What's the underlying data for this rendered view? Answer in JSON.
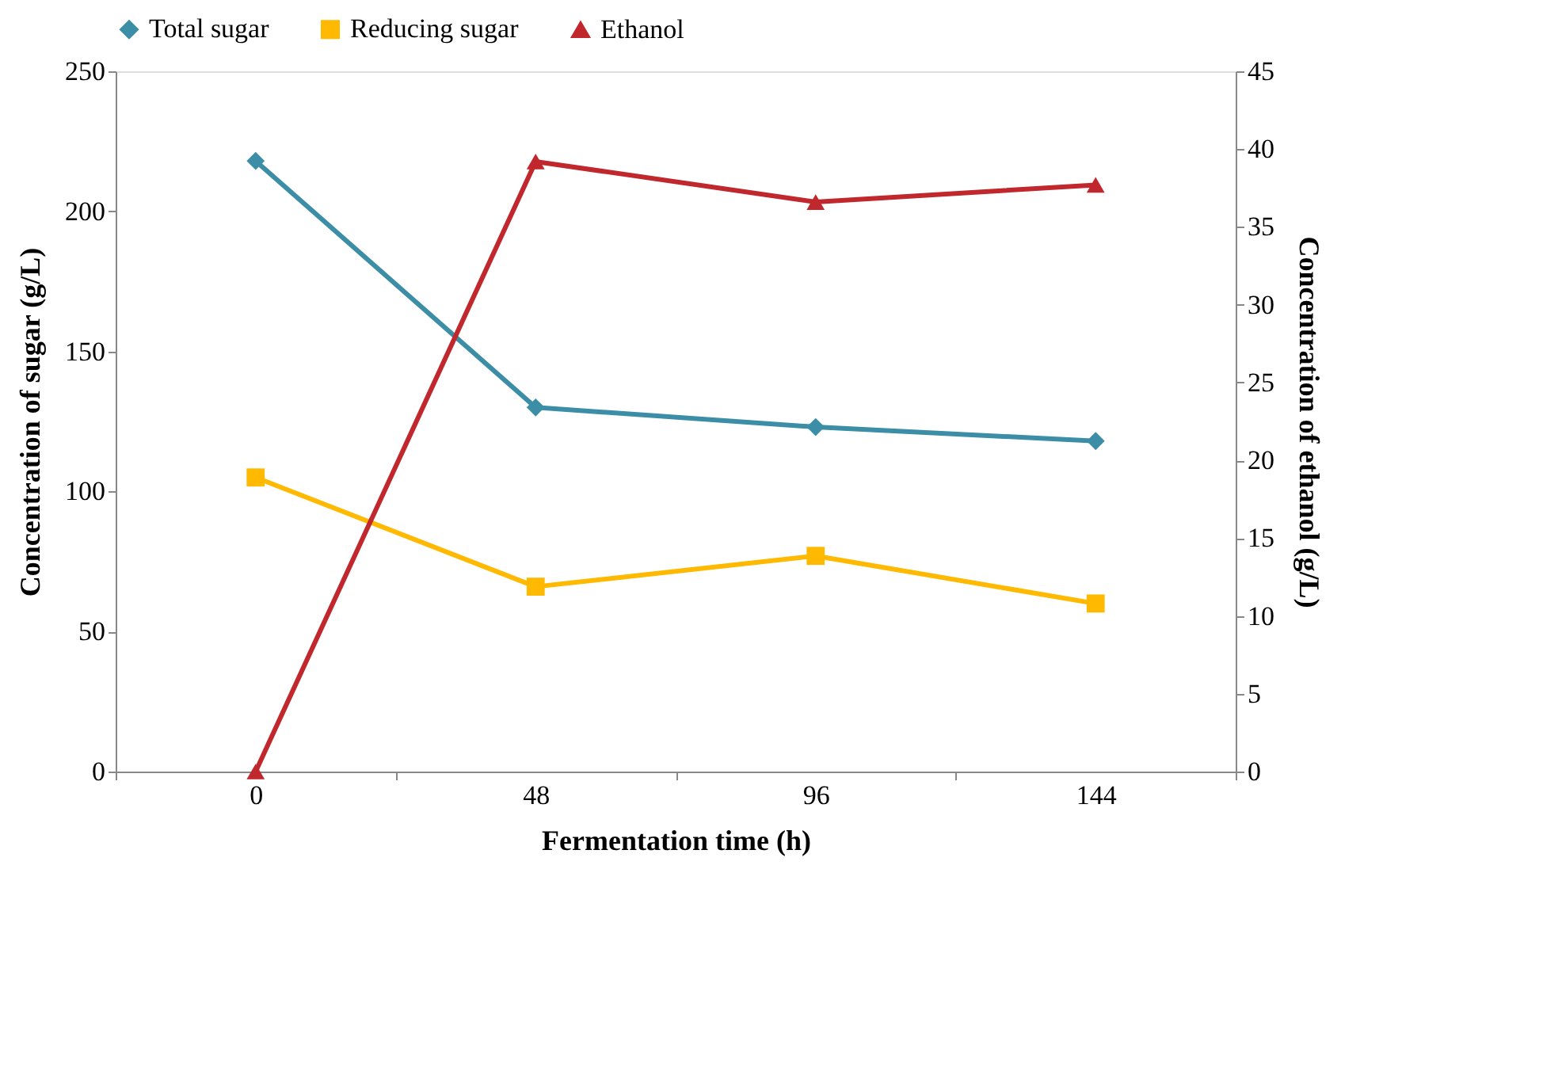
{
  "chart_data": {
    "type": "line",
    "xlabel": "Fermentation time (h)",
    "ylabel": "Concentration of sugar (g/L)",
    "y2label": "Concentration of ethanol (g/L)",
    "categories": [
      "0",
      "48",
      "96",
      "144"
    ],
    "series": [
      {
        "name": "Total sugar",
        "color": "#3b8ea5",
        "marker": "diamond",
        "values": [
          218,
          130,
          123,
          118
        ]
      },
      {
        "name": "Reducing sugar",
        "color": "#ffb900",
        "marker": "square",
        "values": [
          105,
          66,
          77,
          60
        ]
      },
      {
        "name": "Ethanol",
        "color": "#c0282d",
        "marker": "triangle",
        "axis": "y2",
        "values": [
          0,
          39.2,
          36.6,
          37.7
        ]
      }
    ],
    "ylim": [
      0,
      250
    ],
    "yticks": [
      0,
      50,
      100,
      150,
      200,
      250
    ],
    "y2lim": [
      0,
      45
    ],
    "y2ticks": [
      0,
      5,
      10,
      15,
      20,
      25,
      30,
      35,
      40,
      45
    ],
    "grid": false,
    "legend": "top",
    "line_style": "solid"
  }
}
